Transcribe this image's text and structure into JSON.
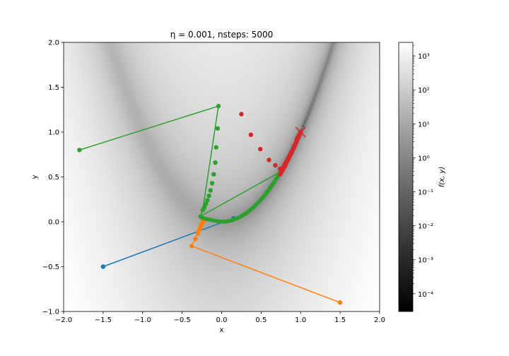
{
  "title": "η = 0.001, nsteps: 5000",
  "chart_data": {
    "type": "line",
    "title": "η = 0.001, nsteps: 5000",
    "xlabel": "x",
    "ylabel": "y",
    "xlim": [
      -2.0,
      2.0
    ],
    "ylim": [
      -1.0,
      2.0
    ],
    "xticks": [
      "−2.0",
      "−1.5",
      "−1.0",
      "−0.5",
      "0.0",
      "0.5",
      "1.0",
      "1.5",
      "2.0"
    ],
    "yticks": [
      "−1.0",
      "−0.5",
      "0.0",
      "0.5",
      "1.0",
      "1.5",
      "2.0"
    ],
    "background": "heatmap of f(x, y) = (1 − x)² + 100(y − x²)², log color scale, gray colormap",
    "colorbar": {
      "label": "f(x, y)",
      "scale": "log",
      "range": [
        3e-05,
        2500
      ],
      "ticks": [
        "10⁻⁴",
        "10⁻³",
        "10⁻²",
        "10⁻¹",
        "10⁰",
        "10¹",
        "10²",
        "10³"
      ]
    },
    "minimum_marker": {
      "x": 1.0,
      "y": 1.0,
      "marker": "x",
      "color": "#d62728"
    },
    "series": [
      {
        "color": "#1f77b4",
        "x": [
          -1.5,
          0.15
        ],
        "y": [
          -0.5,
          0.04
        ]
      },
      {
        "color": "#ff7f0e",
        "x": [
          1.5,
          -0.38,
          -0.33,
          -0.3,
          -0.28,
          -0.27,
          -0.26,
          -0.25,
          -0.24
        ],
        "y": [
          -0.9,
          -0.27,
          -0.19,
          -0.13,
          -0.09,
          -0.06,
          -0.04,
          -0.02,
          0.0
        ],
        "path_segments": [
          [
            1.5,
            -0.9,
            -0.38,
            -0.27
          ],
          [
            -0.38,
            -0.27,
            -0.22,
            0.02
          ]
        ]
      },
      {
        "color": "#2ca02c",
        "x": [
          -1.8,
          -0.04,
          -0.05,
          -0.07,
          -0.08,
          -0.1,
          -0.12,
          -0.14,
          -0.16,
          -0.18,
          -0.2,
          -0.22,
          -0.24
        ],
        "y": [
          0.8,
          1.29,
          1.04,
          0.83,
          0.66,
          0.53,
          0.43,
          0.35,
          0.29,
          0.24,
          0.2,
          0.16,
          0.13
        ],
        "path_segments": [
          [
            -1.8,
            0.8,
            -0.04,
            1.29
          ],
          [
            -0.04,
            1.29,
            -0.24,
            0.13
          ],
          [
            -0.24,
            0.13,
            -0.27,
            0.06
          ],
          [
            -0.27,
            0.06,
            0.75,
            0.56
          ]
        ]
      },
      {
        "color": "#d62728",
        "x": [
          0.25,
          0.37,
          0.49,
          0.6,
          0.68,
          0.74,
          0.77,
          0.8,
          0.84,
          0.88,
          0.92,
          0.95
        ],
        "y": [
          1.2,
          0.97,
          0.81,
          0.69,
          0.63,
          0.59,
          0.58,
          0.62,
          0.7,
          0.77,
          0.85,
          0.92
        ],
        "path_segments": [
          [
            0.74,
            0.58,
            1.0,
            1.0
          ]
        ]
      }
    ]
  }
}
